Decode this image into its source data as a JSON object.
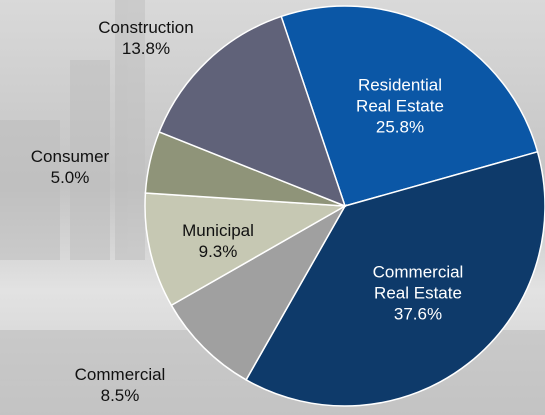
{
  "chart_data": {
    "type": "pie",
    "categories": [
      "Residential Real Estate",
      "Commercial Real Estate",
      "Commercial",
      "Municipal",
      "Consumer",
      "Construction"
    ],
    "values": [
      25.8,
      37.6,
      8.5,
      9.3,
      5.0,
      13.8
    ],
    "value_labels": [
      "25.8%",
      "37.6%",
      "8.5%",
      "9.3%",
      "5.0%",
      "13.8%"
    ],
    "colors": [
      "#0b57a6",
      "#0e3a6a",
      "#a0a0a0",
      "#c6c8b3",
      "#8f9479",
      "#606279"
    ]
  }
}
